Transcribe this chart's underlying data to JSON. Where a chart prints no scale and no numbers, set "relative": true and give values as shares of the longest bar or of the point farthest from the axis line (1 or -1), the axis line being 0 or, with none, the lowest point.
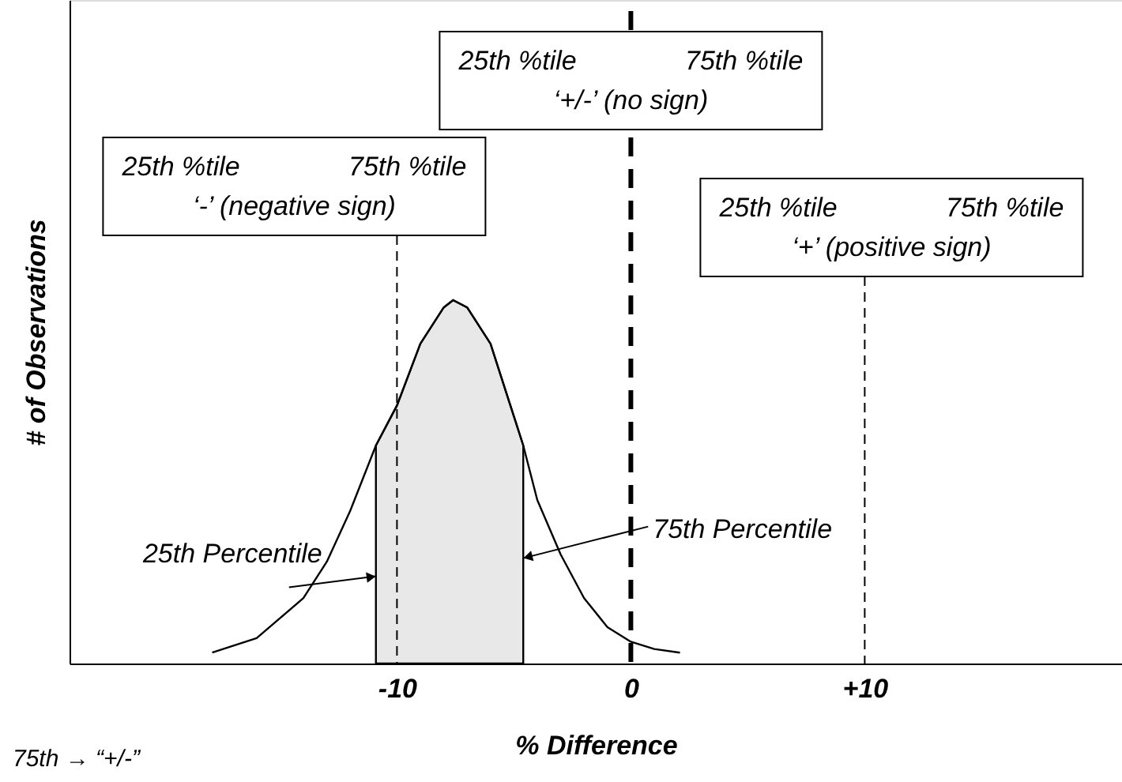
{
  "chart_data": {
    "type": "line",
    "relative": true,
    "xlabel": "% Difference",
    "ylabel": "# of Observations",
    "xlim": [
      -24,
      21
    ],
    "xticks": [
      {
        "value": -10,
        "label": "-10"
      },
      0,
      {
        "value": 10,
        "label": "+10"
      }
    ],
    "grid": false,
    "series": [
      {
        "type": "area",
        "color": "#e8e8e8",
        "x": [
          -10.9,
          -10,
          -9,
          -8,
          -7.6,
          -7,
          -6,
          -5,
          -4.6
        ],
        "values": [
          0.6,
          0.71,
          0.88,
          0.98,
          1.0,
          0.98,
          0.88,
          0.68,
          0.6
        ]
      },
      {
        "color": "#000000",
        "x": [
          -17.9,
          -16,
          -14,
          -13,
          -12,
          -10.9,
          -10,
          -9,
          -8,
          -7.6,
          -7,
          -6,
          -5,
          -4.6,
          -4,
          -3,
          -2,
          -1,
          0,
          1,
          2.1
        ],
        "values": [
          0.03,
          0.07,
          0.18,
          0.28,
          0.42,
          0.6,
          0.71,
          0.88,
          0.98,
          1.0,
          0.98,
          0.88,
          0.68,
          0.6,
          0.45,
          0.3,
          0.18,
          0.1,
          0.06,
          0.04,
          0.03
        ]
      }
    ],
    "ref_lines": [
      {
        "axis": "x",
        "value": -10,
        "label": "25th %tile    75th %tile\n‘-’ (negative sign)",
        "color": "#000000",
        "line_style": "dashed"
      },
      {
        "axis": "x",
        "value": 0,
        "label": "25th %tile    75th %tile\n‘+/-’ (no sign)",
        "color": "#000000",
        "line_style": "dashed"
      },
      {
        "axis": "x",
        "value": 10,
        "label": "25th %tile    75th %tile\n‘+’ (positive sign)",
        "color": "#000000",
        "line_style": "dashed"
      }
    ],
    "annotations": [
      {
        "text": "25th Percentile",
        "x": -10.9,
        "y": 0.24
      },
      {
        "text": "75th Percentile",
        "x": -4.6,
        "y": 0.29
      },
      "75th → “+/-”"
    ]
  }
}
